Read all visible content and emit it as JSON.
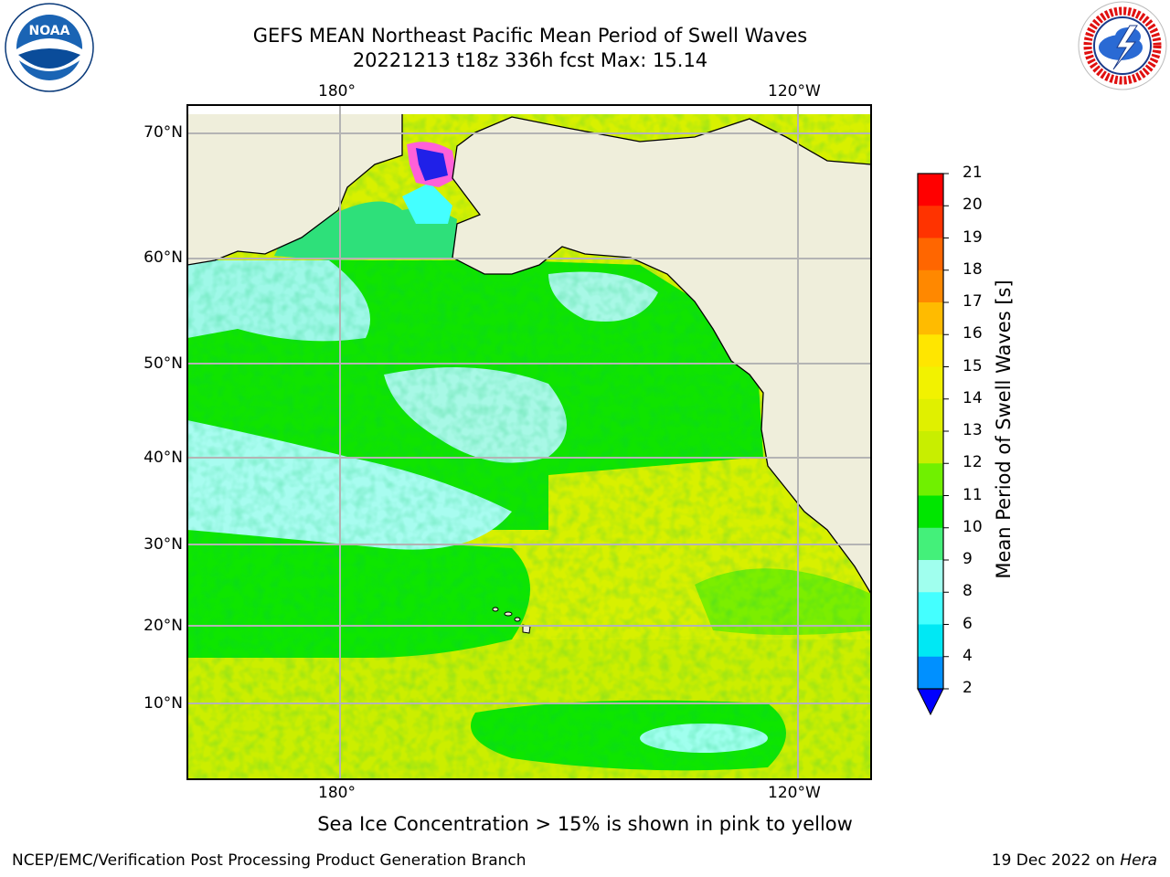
{
  "header": {
    "title": "GEFS MEAN Northeast Pacific Mean Period of Swell Waves",
    "subtitle": "20221213 t18z 336h fcst   Max: 15.14"
  },
  "map": {
    "top_lon_labels": [
      "180°",
      "120°W"
    ],
    "bottom_lon_labels": [
      "180°",
      "120°W"
    ],
    "lat_labels": [
      "70°N",
      "60°N",
      "50°N",
      "40°N",
      "30°N",
      "20°N",
      "10°N"
    ],
    "colors": {
      "land": "#efeedb",
      "grid": "#b4b4b4",
      "coast": "#000000"
    }
  },
  "colorbar": {
    "label": "Mean Period of Swell Waves [s]",
    "ticks": [
      "21",
      "20",
      "19",
      "18",
      "17",
      "16",
      "15",
      "14",
      "13",
      "12",
      "11",
      "10",
      "9",
      "8",
      "6",
      "4",
      "2"
    ],
    "colors": [
      "#ff0000",
      "#ff3300",
      "#ff6600",
      "#ff8800",
      "#ffbb00",
      "#ffe600",
      "#f2f200",
      "#e0f000",
      "#c8ee00",
      "#70f000",
      "#00e600",
      "#44f07a",
      "#a0ffee",
      "#44ffff",
      "#00e8f4",
      "#0090ff",
      "#0000ff"
    ]
  },
  "note": "Sea Ice Concentration > 15% is shown in pink to yellow",
  "footer": {
    "left": "NCEP/EMC/Verification Post Processing Product Generation Branch",
    "right_prefix": "19 Dec 2022 on ",
    "right_host": "Hera"
  },
  "logos": {
    "left_icon": "noaa-logo-icon",
    "left_text": "NOAA",
    "right_icon": "nws-logo-icon",
    "right_text": "NATIONAL WEATHER SERVICE"
  }
}
